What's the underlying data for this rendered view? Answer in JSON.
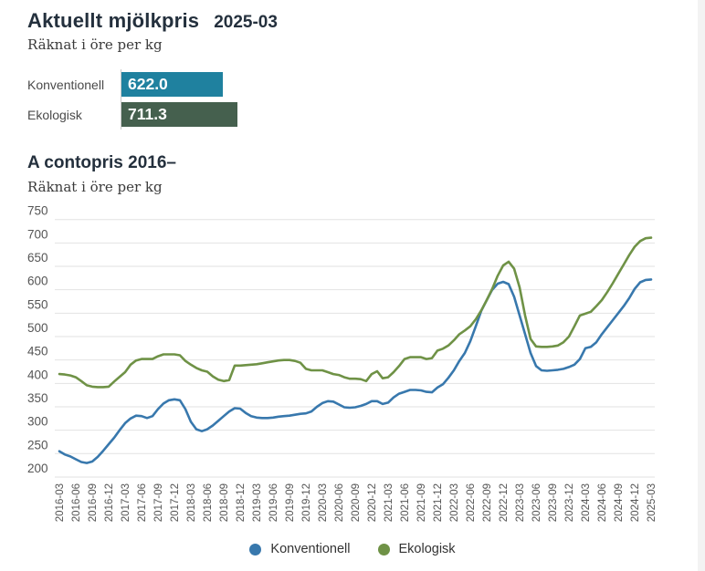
{
  "header": {
    "title": "Aktuellt mjölkpris",
    "period": "2025-03",
    "subtitle": "Räknat i öre per kg",
    "current_prices": [
      {
        "label": "Konventionell",
        "value": "622.0",
        "value_num": 622.0,
        "color": "#1f819f"
      },
      {
        "label": "Ekologisk",
        "value": "711.3",
        "value_num": 711.3,
        "color": "#45604e"
      }
    ]
  },
  "section": {
    "title": "A contopris 2016–",
    "subtitle": "Räknat i öre per kg"
  },
  "chart_data": {
    "type": "line",
    "title": "A contopris 2016–",
    "ylabel": "öre per kg",
    "frequency": "monthly",
    "x_start": "2016-03",
    "x_end": "2025-03",
    "ylim": [
      200,
      750
    ],
    "grid": true,
    "y_ticks": [
      750,
      700,
      650,
      600,
      550,
      500,
      450,
      400,
      350,
      300,
      250,
      200
    ],
    "x_tick_labels": [
      "2016-03",
      "2016-06",
      "2016-09",
      "2016-12",
      "2017-03",
      "2017-06",
      "2017-09",
      "2017-12",
      "2018-03",
      "2018-06",
      "2018-09",
      "2018-12",
      "2019-03",
      "2019-06",
      "2019-09",
      "2019-12",
      "2020-03",
      "2020-06",
      "2020-09",
      "2020-12",
      "2021-03",
      "2021-06",
      "2021-09",
      "2021-12",
      "2022-03",
      "2022-06",
      "2022-09",
      "2022-12",
      "2023-03",
      "2023-06",
      "2023-09",
      "2023-12",
      "2024-03",
      "2024-06",
      "2024-09",
      "2024-12",
      "2025-03"
    ],
    "legend_position": "bottom",
    "series": [
      {
        "name": "Konventionell",
        "color": "#3878ad",
        "values": [
          255,
          248,
          244,
          238,
          232,
          230,
          233,
          243,
          256,
          270,
          284,
          300,
          315,
          325,
          331,
          330,
          326,
          330,
          345,
          357,
          364,
          366,
          364,
          345,
          318,
          302,
          298,
          302,
          310,
          320,
          330,
          340,
          347,
          346,
          337,
          330,
          327,
          326,
          326,
          327,
          329,
          330,
          331,
          333,
          335,
          336,
          340,
          350,
          358,
          362,
          361,
          355,
          349,
          348,
          349,
          352,
          356,
          362,
          362,
          356,
          359,
          370,
          378,
          382,
          386,
          386,
          385,
          382,
          381,
          391,
          398,
          412,
          428,
          448,
          465,
          490,
          522,
          555,
          578,
          600,
          613,
          617,
          612,
          585,
          545,
          505,
          465,
          437,
          428,
          427,
          428,
          429,
          431,
          435,
          440,
          452,
          475,
          478,
          488,
          505,
          520,
          535,
          550,
          565,
          582,
          602,
          616,
          621,
          622.0
        ]
      },
      {
        "name": "Ekologisk",
        "color": "#6f9246",
        "values": [
          420,
          419,
          417,
          413,
          405,
          396,
          393,
          392,
          392,
          393,
          404,
          414,
          424,
          440,
          449,
          452,
          452,
          452,
          458,
          462,
          462,
          462,
          460,
          448,
          440,
          433,
          428,
          425,
          415,
          408,
          405,
          407,
          438,
          438,
          439,
          440,
          441,
          443,
          445,
          447,
          449,
          450,
          450,
          448,
          444,
          431,
          428,
          428,
          428,
          424,
          420,
          418,
          413,
          410,
          410,
          409,
          405,
          420,
          426,
          411,
          413,
          424,
          437,
          452,
          456,
          456,
          456,
          452,
          454,
          470,
          474,
          481,
          492,
          505,
          513,
          522,
          537,
          556,
          578,
          602,
          630,
          652,
          660,
          645,
          605,
          545,
          495,
          479,
          478,
          478,
          479,
          481,
          488,
          500,
          522,
          545,
          549,
          553,
          565,
          578,
          595,
          614,
          634,
          654,
          674,
          692,
          704,
          710,
          711.3
        ]
      }
    ]
  },
  "colors": {
    "grid": "#e2e2e2",
    "axis_text": "#555555",
    "title_text": "#24303d"
  }
}
